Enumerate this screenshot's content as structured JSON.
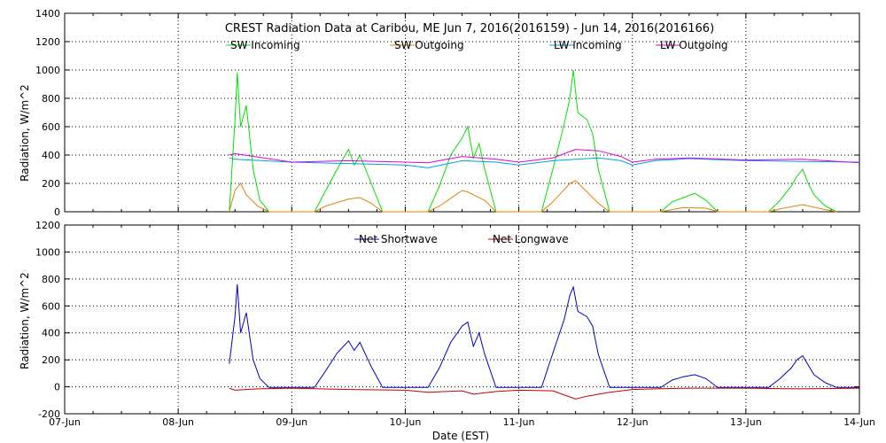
{
  "chart_data": [
    {
      "type": "line",
      "title": "CREST Radiation Data at Caribou, ME   Jun  7, 2016(2016159) - Jun 14, 2016(2016166)",
      "xlabel": "",
      "ylabel": "Radiation, W/m^2",
      "xlim": [
        0,
        7
      ],
      "ylim": [
        0,
        1400
      ],
      "yticks": [
        "0",
        "200",
        "400",
        "600",
        "800",
        "1000",
        "1200",
        "1400"
      ],
      "grid": true,
      "legend_position": "top",
      "series": [
        {
          "name": "SW Incoming",
          "color": "#00e000",
          "x": [
            1.45,
            1.5,
            1.52,
            1.55,
            1.6,
            1.66,
            1.72,
            1.8,
            2.2,
            2.3,
            2.4,
            2.5,
            2.55,
            2.6,
            2.7,
            2.8,
            3.2,
            3.3,
            3.4,
            3.5,
            3.55,
            3.6,
            3.65,
            3.7,
            3.8,
            4.2,
            4.3,
            4.4,
            4.45,
            4.48,
            4.52,
            4.6,
            4.65,
            4.7,
            4.8,
            5.25,
            5.35,
            5.45,
            5.55,
            5.65,
            5.75,
            6.2,
            6.3,
            6.4,
            6.45,
            6.5,
            6.55,
            6.6,
            6.7,
            6.8
          ],
          "y": [
            0,
            640,
            980,
            600,
            750,
            300,
            80,
            0,
            0,
            150,
            300,
            440,
            330,
            400,
            200,
            0,
            0,
            180,
            400,
            520,
            600,
            380,
            480,
            300,
            0,
            0,
            300,
            620,
            800,
            1000,
            700,
            650,
            550,
            300,
            0,
            0,
            70,
            100,
            130,
            80,
            0,
            0,
            80,
            180,
            250,
            300,
            200,
            120,
            40,
            0
          ]
        },
        {
          "name": "SW Outgoing",
          "color": "#e08000",
          "x": [
            1.45,
            1.5,
            1.55,
            1.6,
            1.7,
            1.8,
            2.2,
            2.3,
            2.5,
            2.6,
            2.7,
            2.8,
            3.2,
            3.3,
            3.5,
            3.55,
            3.7,
            3.8,
            4.2,
            4.3,
            4.45,
            4.5,
            4.6,
            4.7,
            4.8,
            5.25,
            5.45,
            5.65,
            5.75,
            6.2,
            6.3,
            6.5,
            6.7,
            6.8
          ],
          "y": [
            0,
            150,
            200,
            120,
            40,
            0,
            0,
            40,
            90,
            100,
            60,
            0,
            0,
            40,
            150,
            140,
            80,
            0,
            0,
            70,
            200,
            220,
            140,
            60,
            0,
            0,
            30,
            25,
            0,
            0,
            20,
            50,
            15,
            0
          ]
        },
        {
          "name": "LW Incoming",
          "color": "#00a0e0",
          "x": [
            1.45,
            1.5,
            2.0,
            2.5,
            3.0,
            3.2,
            3.5,
            3.8,
            4.0,
            4.3,
            4.5,
            4.7,
            4.9,
            5.0,
            5.2,
            5.5,
            6.0,
            6.5,
            7.0
          ],
          "y": [
            380,
            370,
            350,
            340,
            330,
            310,
            360,
            350,
            330,
            360,
            370,
            380,
            360,
            330,
            360,
            375,
            360,
            355,
            350
          ]
        },
        {
          "name": "LW Outgoing",
          "color": "#e000e0",
          "x": [
            1.45,
            1.5,
            2.0,
            2.5,
            3.0,
            3.2,
            3.5,
            3.8,
            4.0,
            4.3,
            4.5,
            4.7,
            4.9,
            5.0,
            5.2,
            5.5,
            6.0,
            6.5,
            7.0
          ],
          "y": [
            400,
            410,
            350,
            360,
            350,
            345,
            390,
            370,
            350,
            380,
            440,
            430,
            390,
            350,
            370,
            380,
            365,
            370,
            345
          ]
        }
      ]
    },
    {
      "type": "line",
      "title": "",
      "xlabel": "Date (EST)",
      "ylabel": "Radiation, W/m^2",
      "xlim": [
        0,
        7
      ],
      "ylim": [
        -200,
        1200
      ],
      "yticks": [
        "-200",
        "0",
        "200",
        "400",
        "600",
        "800",
        "1000",
        "1200"
      ],
      "xticks": [
        "07-Jun",
        "08-Jun",
        "09-Jun",
        "10-Jun",
        "11-Jun",
        "12-Jun",
        "13-Jun",
        "14-Jun"
      ],
      "grid": true,
      "legend_position": "top",
      "series": [
        {
          "name": "Net Shortwave",
          "color": "#0000c0",
          "x": [
            1.45,
            1.5,
            1.52,
            1.55,
            1.6,
            1.66,
            1.72,
            1.8,
            2.2,
            2.3,
            2.4,
            2.5,
            2.55,
            2.6,
            2.7,
            2.8,
            3.2,
            3.3,
            3.4,
            3.5,
            3.55,
            3.6,
            3.65,
            3.7,
            3.8,
            4.2,
            4.3,
            4.4,
            4.45,
            4.48,
            4.52,
            4.6,
            4.65,
            4.7,
            4.8,
            5.25,
            5.35,
            5.45,
            5.55,
            5.65,
            5.75,
            6.2,
            6.3,
            6.4,
            6.45,
            6.5,
            6.55,
            6.6,
            6.7,
            6.8,
            7.0
          ],
          "y": [
            170,
            520,
            760,
            400,
            550,
            200,
            60,
            -5,
            -5,
            120,
            250,
            340,
            270,
            330,
            150,
            -5,
            -5,
            140,
            330,
            450,
            480,
            300,
            400,
            240,
            -5,
            -5,
            250,
            500,
            680,
            740,
            560,
            520,
            450,
            240,
            -5,
            -5,
            50,
            75,
            90,
            60,
            -5,
            -5,
            60,
            140,
            200,
            230,
            160,
            90,
            30,
            -5,
            -5
          ]
        },
        {
          "name": "Net Longwave",
          "color": "#c00000",
          "x": [
            1.45,
            1.5,
            1.7,
            2.0,
            2.5,
            3.0,
            3.2,
            3.5,
            3.6,
            3.8,
            4.0,
            4.3,
            4.5,
            4.6,
            4.8,
            5.0,
            5.2,
            5.5,
            6.0,
            6.5,
            7.0
          ],
          "y": [
            -10,
            -25,
            -15,
            -10,
            -20,
            -25,
            -40,
            -30,
            -55,
            -35,
            -25,
            -30,
            -90,
            -70,
            -40,
            -20,
            -15,
            -10,
            -10,
            -15,
            -10
          ]
        }
      ]
    }
  ]
}
